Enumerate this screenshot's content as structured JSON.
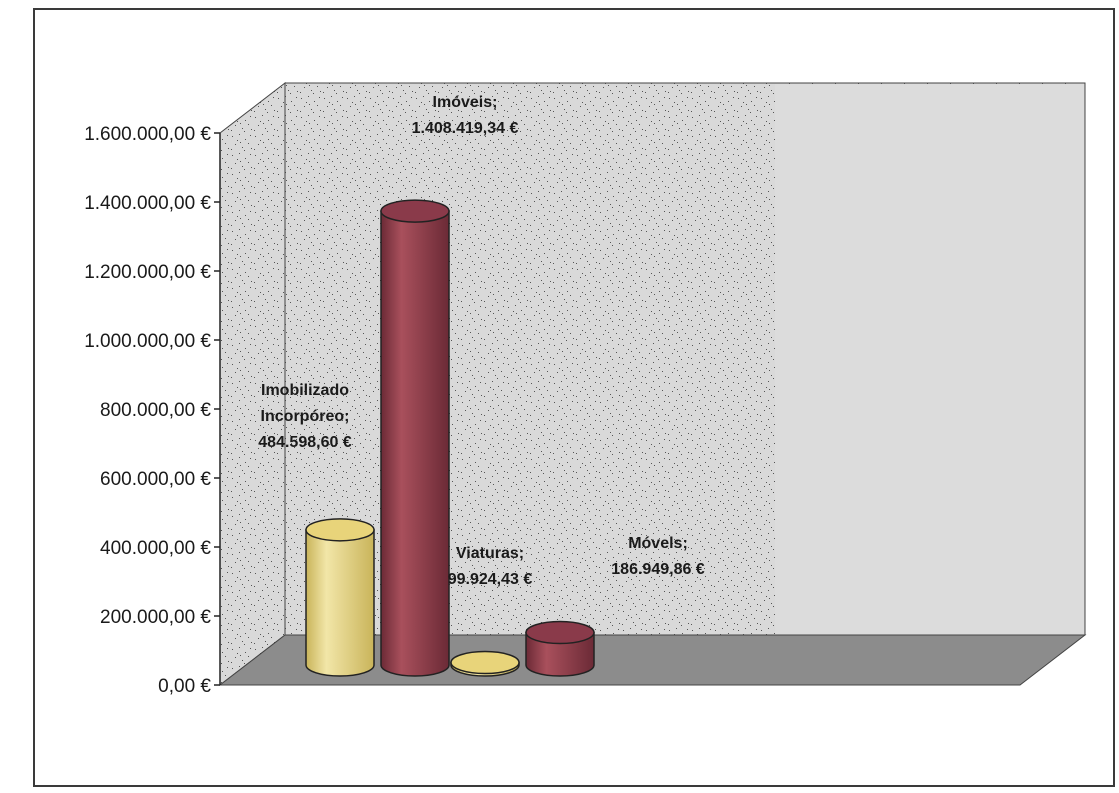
{
  "chart_data": {
    "type": "bar",
    "style": "3d-cylinder",
    "categories": [
      "Imobilizado Incorpóreo",
      "Imóveis",
      "Viaturas",
      "Móvels"
    ],
    "values": [
      484598.6,
      1408419.34,
      99924.43,
      186949.86
    ],
    "data_labels": [
      [
        "Imobilizado",
        "Incorpóreo;",
        "484.598,60 €"
      ],
      [
        "Imóveis;",
        "1.408.419,34 €"
      ],
      [
        "Viaturas;",
        "99.924,43 €"
      ],
      [
        "Móvels;",
        "186.949,86 €"
      ]
    ],
    "colors": [
      "#e8d47a",
      "#8a3a4a",
      "#e8d47a",
      "#8a3a4a"
    ],
    "y_ticks": [
      "0,00 €",
      "200.000,00 €",
      "400.000,00 €",
      "600.000,00 €",
      "800.000,00 €",
      "1.000.000,00 €",
      "1.200.000,00 €",
      "1.400.000,00 €",
      "1.600.000,00 €"
    ],
    "ylim": [
      0,
      1600000
    ],
    "grid": false,
    "legend": "none",
    "title": "",
    "xlabel": "",
    "ylabel": ""
  }
}
